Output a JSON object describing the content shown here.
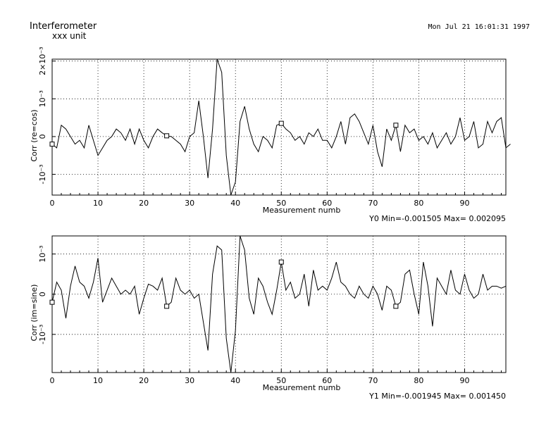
{
  "header": {
    "title": "Interferometer",
    "subtitle": "xxx unit",
    "timestamp": "Mon Jul 21 16:01:31 1997"
  },
  "chart_data": [
    {
      "type": "line",
      "title": "",
      "xlabel": "Measurement numb",
      "ylabel": "Corr (re=cos)",
      "xlim": [
        0,
        99
      ],
      "ylim": [
        -0.00155,
        0.00205
      ],
      "x_ticks": [
        0,
        10,
        20,
        30,
        40,
        50,
        60,
        70,
        80,
        90
      ],
      "x_tick_labels": [
        "0",
        "10",
        "20",
        "30",
        "40",
        "50",
        "60",
        "70",
        "80",
        "90"
      ],
      "y_ticks": [
        -0.001,
        0,
        0.001,
        0.002
      ],
      "y_tick_labels": [
        "-10⁻³",
        "0",
        "10⁻³",
        "2×10⁻³"
      ],
      "grid": true,
      "footer": "Y0 Min=-0.001505 Max= 0.002095",
      "markers_x": [
        0,
        25,
        50,
        75
      ],
      "series": [
        {
          "values": [
            -0.0002,
            -0.0003,
            0.0003,
            0.0002,
            0.0,
            -0.0002,
            -0.0001,
            -0.0003,
            0.0003,
            -0.0001,
            -0.0005,
            -0.0003,
            -0.0001,
            0.0,
            0.0002,
            0.0001,
            -0.0001,
            0.0002,
            -0.0002,
            0.0002,
            -0.0001,
            -0.0003,
            0.0,
            0.0002,
            0.0001,
            2e-05,
            0.0,
            -0.0001,
            -0.0002,
            -0.0004,
            0.0,
            0.0001,
            0.00095,
            0.0,
            -0.0011,
            0.0002,
            0.00205,
            0.0017,
            -0.0005,
            -0.00155,
            -0.0012,
            0.0004,
            0.0008,
            0.0002,
            -0.0002,
            -0.0004,
            0.0,
            -0.0001,
            -0.0003,
            0.0003,
            0.00035,
            0.0002,
            0.0001,
            -0.0001,
            0.0,
            -0.0002,
            0.0001,
            0.0,
            0.0002,
            -0.0001,
            -0.0001,
            -0.0003,
            0.0,
            0.0004,
            -0.0002,
            0.0005,
            0.0006,
            0.0004,
            0.0001,
            -0.0002,
            0.0003,
            -0.0004,
            -0.0008,
            0.0002,
            -0.0001,
            0.0003,
            -0.0004,
            0.0003,
            0.0001,
            0.0002,
            -0.0001,
            0.0,
            -0.0002,
            0.0001,
            -0.0003,
            -0.0001,
            0.0001,
            -0.0002,
            0.0,
            0.0005,
            -0.0001,
            0.0,
            0.0004,
            -0.0003,
            -0.0002,
            0.0004,
            0.0001,
            0.0004,
            0.0005,
            -0.0003,
            -0.0002
          ]
        }
      ]
    },
    {
      "type": "line",
      "title": "",
      "xlabel": "Measurement numb",
      "ylabel": "Corr (im=sine)",
      "xlim": [
        0,
        99
      ],
      "ylim": [
        -0.00195,
        0.00145
      ],
      "x_ticks": [
        0,
        10,
        20,
        30,
        40,
        50,
        60,
        70,
        80,
        90
      ],
      "x_tick_labels": [
        "0",
        "10",
        "20",
        "30",
        "40",
        "50",
        "60",
        "70",
        "80",
        "90"
      ],
      "y_ticks": [
        -0.001,
        0,
        0.001
      ],
      "y_tick_labels": [
        "-10⁻³",
        "0",
        "10⁻³"
      ],
      "grid": true,
      "footer": "Y1 Min=-0.001945 Max= 0.001450",
      "markers_x": [
        0,
        25,
        50,
        75
      ],
      "series": [
        {
          "values": [
            -0.0002,
            0.0003,
            0.0001,
            -0.0006,
            0.0002,
            0.0007,
            0.0003,
            0.0002,
            -0.0001,
            0.0003,
            0.0009,
            -0.0002,
            0.0001,
            0.0004,
            0.0002,
            0.0,
            0.0001,
            0.0,
            0.0002,
            -0.0005,
            -0.0001,
            0.00025,
            0.0002,
            0.0001,
            0.0004,
            -0.0003,
            -0.0002,
            0.0004,
            0.0001,
            0.0,
            0.0001,
            -0.0001,
            0.0,
            -0.0007,
            -0.0014,
            0.0005,
            0.0012,
            0.0011,
            -0.0011,
            -0.00195,
            -0.0009,
            0.00145,
            0.0011,
            -0.0001,
            -0.0005,
            0.0004,
            0.0002,
            -0.0002,
            -0.0005,
            0.0001,
            0.0008,
            0.0001,
            0.0003,
            -0.0001,
            0.0,
            0.0005,
            -0.0003,
            0.0006,
            0.0001,
            0.0002,
            0.0001,
            0.0004,
            0.0008,
            0.0003,
            0.0002,
            0.0,
            -0.0001,
            0.0002,
            0.0,
            -0.0001,
            0.0002,
            0.0,
            -0.0004,
            0.0002,
            0.0001,
            -0.0003,
            -0.0002,
            0.0005,
            0.0006,
            0.0,
            -0.0005,
            0.0008,
            0.0002,
            -0.0008,
            0.0004,
            0.0002,
            0.0,
            0.0006,
            0.0001,
            0.0,
            0.0005,
            0.0001,
            -0.0001,
            0.0,
            0.0005,
            0.0001,
            0.0002,
            0.0002,
            0.00015,
            0.0002
          ]
        }
      ]
    }
  ]
}
